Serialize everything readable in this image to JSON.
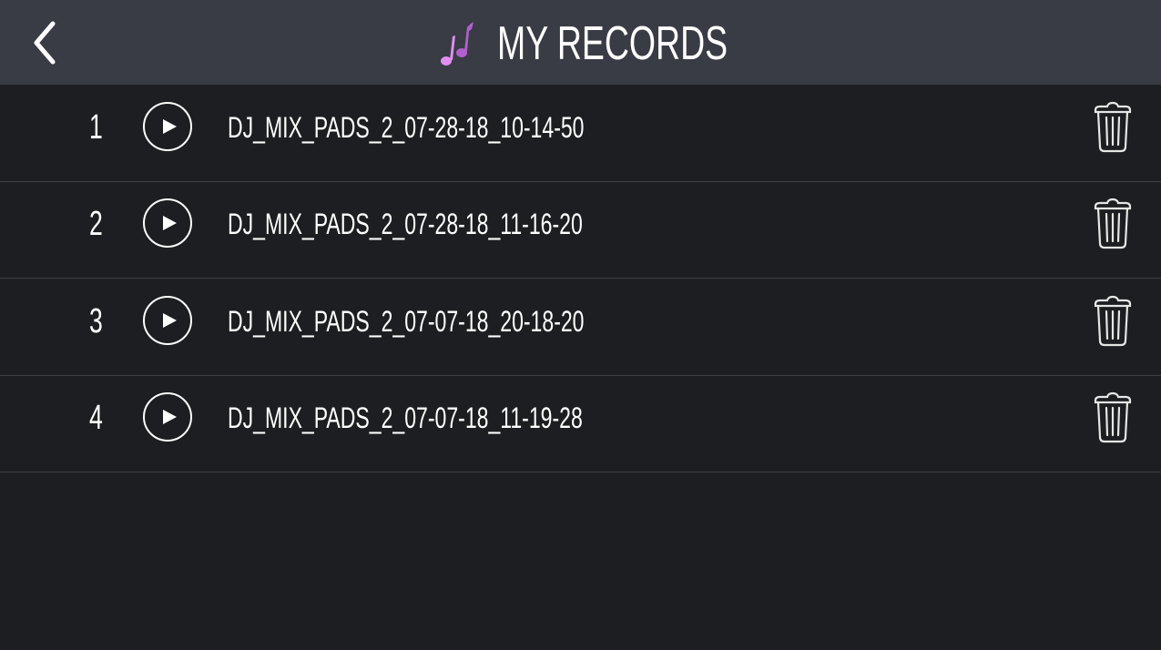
{
  "header": {
    "title": "MY RECORDS",
    "back_icon": "chevron-left-icon",
    "title_icon": "music-note-icon",
    "accent_color": "#c86ee0"
  },
  "records": [
    {
      "index": "1",
      "name": "DJ_MIX_PADS_2_07-28-18_10-14-50"
    },
    {
      "index": "2",
      "name": "DJ_MIX_PADS_2_07-28-18_11-16-20"
    },
    {
      "index": "3",
      "name": "DJ_MIX_PADS_2_07-07-18_20-18-20"
    },
    {
      "index": "4",
      "name": "DJ_MIX_PADS_2_07-07-18_11-19-28"
    }
  ]
}
